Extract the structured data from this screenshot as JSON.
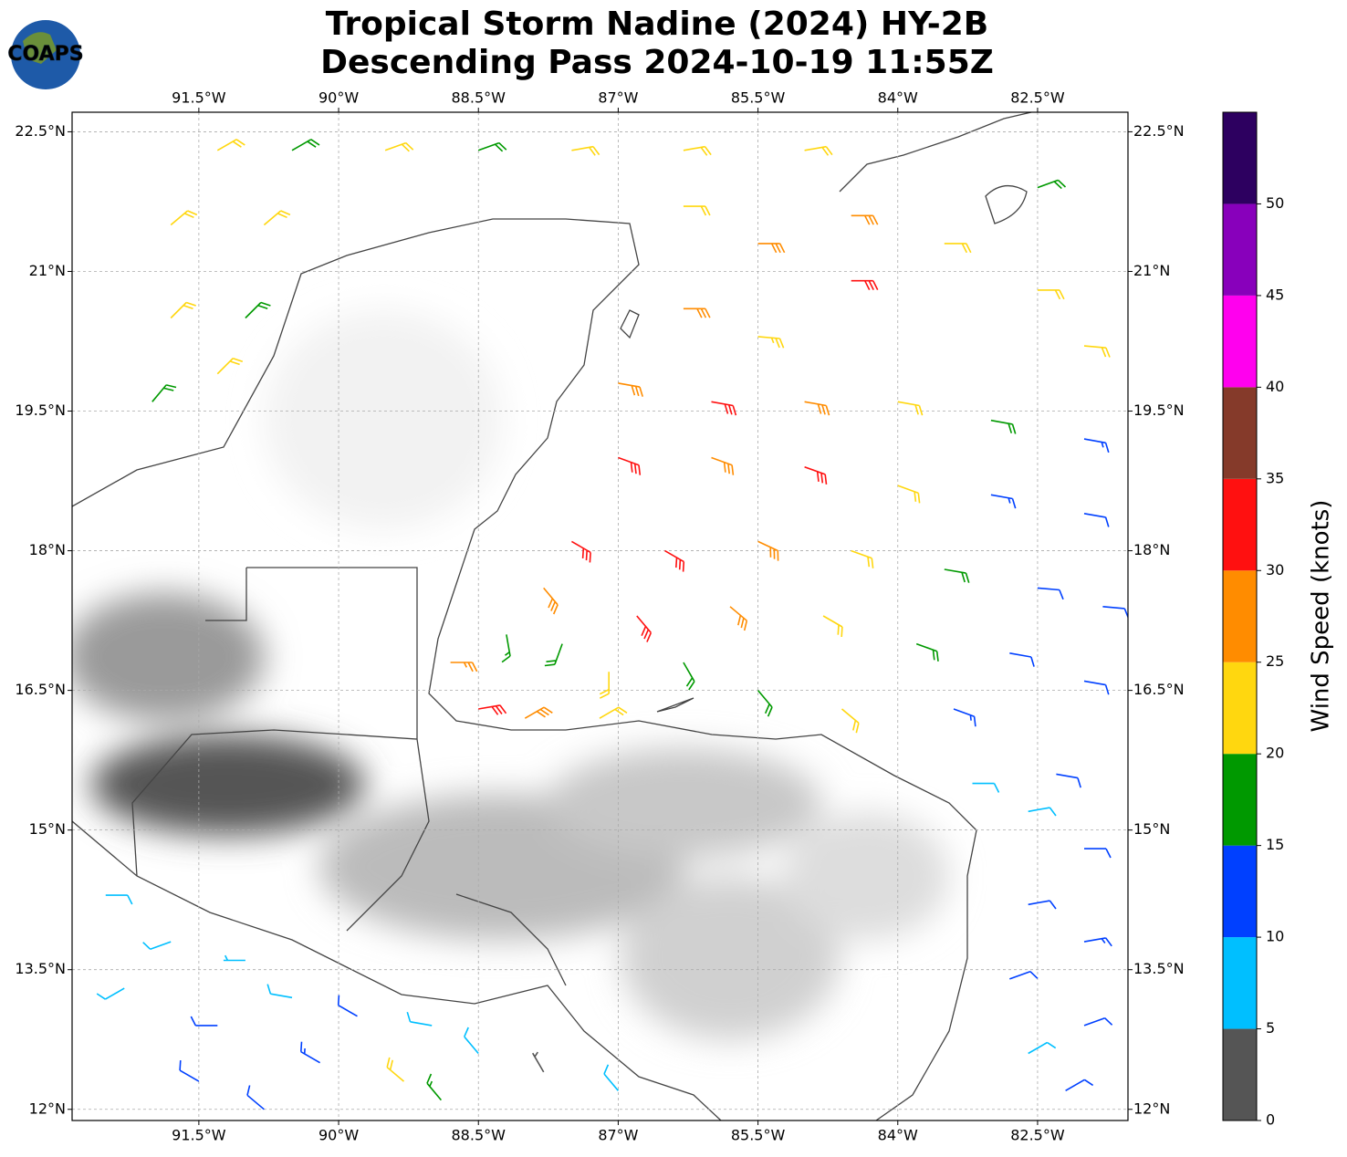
{
  "chart_data": {
    "type": "barbs",
    "title": "Tropical Storm Nadine (2024) HY-2B",
    "subtitle": "Descending Pass 2024-10-19 11:55Z",
    "logo": "COAPS",
    "xlim": [
      -92.86,
      -81.53
    ],
    "ylim": [
      11.88,
      22.71
    ],
    "xticks": [
      {
        "value": -91.5,
        "label": "91.5°W"
      },
      {
        "value": -90,
        "label": "90°W"
      },
      {
        "value": -88.5,
        "label": "88.5°W"
      },
      {
        "value": -87,
        "label": "87°W"
      },
      {
        "value": -85.5,
        "label": "85.5°W"
      },
      {
        "value": -84,
        "label": "84°W"
      },
      {
        "value": -82.5,
        "label": "82.5°W"
      }
    ],
    "yticks": [
      {
        "value": 12,
        "label": "12°N"
      },
      {
        "value": 13.5,
        "label": "13.5°N"
      },
      {
        "value": 15,
        "label": "15°N"
      },
      {
        "value": 16.5,
        "label": "16.5°N"
      },
      {
        "value": 18,
        "label": "18°N"
      },
      {
        "value": 19.5,
        "label": "19.5°N"
      },
      {
        "value": 21,
        "label": "21°N"
      },
      {
        "value": 22.5,
        "label": "22.5°N"
      }
    ],
    "grid": true,
    "colorbar": {
      "label": "Wind Speed (knots)",
      "clim": [
        0,
        55
      ],
      "levels": [
        0,
        5,
        10,
        15,
        20,
        25,
        30,
        35,
        40,
        45,
        50,
        55
      ],
      "colors": [
        "#555555",
        "#00bfff",
        "#0040ff",
        "#009900",
        "#ffd70f",
        "#ff8c00",
        "#ff1010",
        "#853a2a",
        "#ff00ee",
        "#8800bb",
        "#2d0060"
      ],
      "ticks": [
        0,
        5,
        10,
        15,
        20,
        25,
        30,
        35,
        40,
        45,
        50
      ]
    },
    "barbs": {
      "lon": [
        -91.3,
        -90.5,
        -89.5,
        -88.5,
        -87.5,
        -86.3,
        -85,
        -91.8,
        -90.8,
        -91.8,
        -91,
        -92,
        -91.3,
        -86.3,
        -85.5,
        -84.5,
        -84.5,
        -85.5,
        -86.3,
        -83.5,
        -82.5,
        -82,
        -82.5,
        -87,
        -86,
        -85,
        -84,
        -83,
        -82,
        -87,
        -86,
        -85,
        -84,
        -83,
        -82,
        -87.5,
        -86.5,
        -85.5,
        -84.5,
        -83.5,
        -82.5,
        -81.8,
        -87.8,
        -86.8,
        -85.8,
        -84.8,
        -83.8,
        -82.8,
        -82,
        -88.2,
        -87.6,
        -87.1,
        -86.3,
        -85.5,
        -84.6,
        -83.4,
        -82.3,
        -88.8,
        -88.5,
        -88,
        -87.2,
        -83.2,
        -82.6,
        -82,
        -82.6,
        -82,
        -82.8,
        -82,
        -82.6,
        -82.2,
        -92.5,
        -91.8,
        -91,
        -92.3,
        -91.3,
        -90.5,
        -89.8,
        -89,
        -90.2,
        -91.5,
        -89.3,
        -88.5,
        -87.8,
        -87,
        -88.9,
        -90.8
      ],
      "lat": [
        22.3,
        22.3,
        22.3,
        22.3,
        22.3,
        22.3,
        22.3,
        21.5,
        21.5,
        20.5,
        20.5,
        19.6,
        19.9,
        21.7,
        21.3,
        21.6,
        20.9,
        20.3,
        20.6,
        21.3,
        20.8,
        20.2,
        21.9,
        19.8,
        19.6,
        19.6,
        19.6,
        19.4,
        19.2,
        19,
        19,
        18.9,
        18.7,
        18.6,
        18.4,
        18.1,
        18,
        18.1,
        18,
        17.8,
        17.6,
        17.4,
        17.6,
        17.3,
        17.4,
        17.3,
        17,
        16.9,
        16.6,
        17.1,
        17,
        16.7,
        16.8,
        16.5,
        16.3,
        16.3,
        15.6,
        16.8,
        16.3,
        16.2,
        16.2,
        15.5,
        15.2,
        14.8,
        14.2,
        13.8,
        13.4,
        12.9,
        12.6,
        12.2,
        14.3,
        13.8,
        13.6,
        13.3,
        12.9,
        13.2,
        13,
        12.9,
        12.5,
        12.3,
        12.3,
        12.6,
        12.4,
        12.2,
        12.1,
        12
      ],
      "speed": [
        22,
        18,
        22,
        18,
        22,
        22,
        22,
        22,
        22,
        22,
        18,
        18,
        20,
        22,
        28,
        28,
        32,
        24,
        28,
        22,
        22,
        22,
        18,
        28,
        32,
        28,
        22,
        18,
        14,
        32,
        28,
        32,
        22,
        14,
        12,
        32,
        32,
        28,
        22,
        18,
        12,
        12,
        28,
        32,
        28,
        22,
        18,
        12,
        12,
        16,
        18,
        22,
        18,
        18,
        20,
        14,
        12,
        26,
        32,
        28,
        22,
        8,
        8,
        12,
        12,
        14,
        12,
        10,
        8,
        12,
        8,
        8,
        6,
        8,
        12,
        8,
        12,
        8,
        14,
        12,
        20,
        8,
        4,
        8,
        16,
        12
      ],
      "direction": [
        60,
        60,
        70,
        70,
        80,
        80,
        80,
        50,
        50,
        45,
        45,
        40,
        45,
        90,
        90,
        90,
        90,
        95,
        90,
        90,
        90,
        95,
        70,
        100,
        100,
        100,
        100,
        100,
        100,
        110,
        110,
        110,
        110,
        100,
        100,
        120,
        120,
        115,
        110,
        100,
        95,
        95,
        140,
        140,
        130,
        120,
        110,
        100,
        100,
        170,
        200,
        180,
        150,
        140,
        130,
        110,
        100,
        90,
        80,
        60,
        60,
        90,
        80,
        90,
        80,
        80,
        70,
        70,
        60,
        60,
        90,
        250,
        270,
        240,
        270,
        280,
        300,
        280,
        300,
        300,
        310,
        320,
        330,
        320,
        320,
        310
      ]
    }
  }
}
